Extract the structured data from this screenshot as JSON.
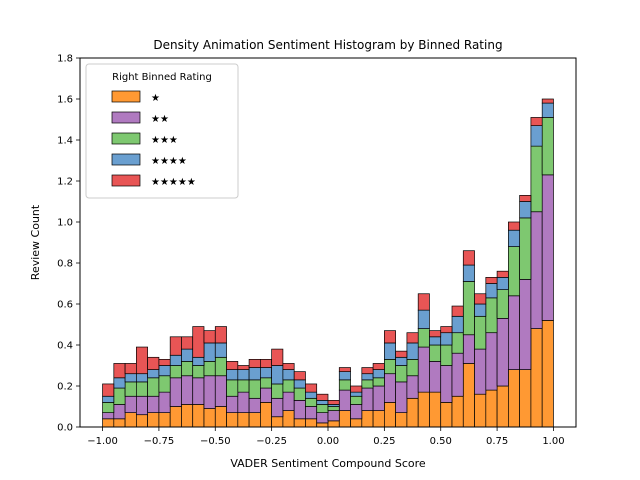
{
  "chart_data": {
    "type": "bar",
    "stacked": true,
    "title": "Density Animation Sentiment Histogram by Binned Rating",
    "xlabel": "VADER Sentiment Compound Score",
    "ylabel": "Review Count",
    "xlim": [
      -1.1,
      1.1
    ],
    "ylim": [
      0,
      1.8
    ],
    "xticks": [
      -1.0,
      -0.75,
      -0.5,
      -0.25,
      0.0,
      0.25,
      0.5,
      0.75,
      1.0
    ],
    "xtick_labels": [
      "−1.00",
      "−0.75",
      "−0.50",
      "−0.25",
      "0.00",
      "0.25",
      "0.50",
      "0.75",
      "1.00"
    ],
    "yticks": [
      0.0,
      0.2,
      0.4,
      0.6,
      0.8,
      1.0,
      1.2,
      1.4,
      1.6,
      1.8
    ],
    "ytick_labels": [
      "0.0",
      "0.2",
      "0.4",
      "0.6",
      "0.8",
      "1.0",
      "1.2",
      "1.4",
      "1.6",
      "1.8"
    ],
    "grid": false,
    "legend": {
      "title": "Right Binned Rating",
      "placement": "upper-left"
    },
    "bin_width": 0.05,
    "bin_left_edges": [
      -1.0,
      -0.95,
      -0.9,
      -0.85,
      -0.8,
      -0.75,
      -0.7,
      -0.65,
      -0.6,
      -0.55,
      -0.5,
      -0.45,
      -0.4,
      -0.35,
      -0.3,
      -0.25,
      -0.2,
      -0.15,
      -0.1,
      -0.05,
      0.0,
      0.05,
      0.1,
      0.15,
      0.2,
      0.25,
      0.3,
      0.35,
      0.4,
      0.45,
      0.5,
      0.55,
      0.6,
      0.65,
      0.7,
      0.75,
      0.8,
      0.85,
      0.9,
      0.95
    ],
    "series": [
      {
        "name": "★",
        "color": "#ff9933",
        "values": [
          0.04,
          0.04,
          0.07,
          0.06,
          0.07,
          0.07,
          0.1,
          0.11,
          0.11,
          0.09,
          0.1,
          0.07,
          0.07,
          0.07,
          0.12,
          0.05,
          0.08,
          0.04,
          0.04,
          0.02,
          0.03,
          0.08,
          0.04,
          0.08,
          0.08,
          0.12,
          0.07,
          0.14,
          0.17,
          0.17,
          0.12,
          0.15,
          0.31,
          0.16,
          0.18,
          0.2,
          0.28,
          0.28,
          0.48,
          0.52
        ]
      },
      {
        "name": "★★",
        "color": "#b07ac0",
        "values": [
          0.03,
          0.07,
          0.08,
          0.09,
          0.08,
          0.1,
          0.14,
          0.14,
          0.13,
          0.16,
          0.15,
          0.08,
          0.1,
          0.07,
          0.07,
          0.09,
          0.09,
          0.09,
          0.06,
          0.05,
          0.05,
          0.1,
          0.07,
          0.11,
          0.12,
          0.14,
          0.15,
          0.11,
          0.22,
          0.15,
          0.18,
          0.21,
          0.14,
          0.22,
          0.28,
          0.33,
          0.36,
          0.44,
          0.57,
          0.71
        ]
      },
      {
        "name": "★★★",
        "color": "#7ec870",
        "values": [
          0.05,
          0.08,
          0.07,
          0.07,
          0.09,
          0.08,
          0.06,
          0.07,
          0.06,
          0.07,
          0.09,
          0.08,
          0.06,
          0.09,
          0.05,
          0.07,
          0.06,
          0.06,
          0.04,
          0.04,
          0.02,
          0.05,
          0.04,
          0.04,
          0.04,
          0.07,
          0.08,
          0.08,
          0.09,
          0.08,
          0.1,
          0.1,
          0.26,
          0.16,
          0.17,
          0.14,
          0.24,
          0.3,
          0.32,
          0.28
        ]
      },
      {
        "name": "★★★★",
        "color": "#6a9fd0",
        "values": [
          0.03,
          0.05,
          0.04,
          0.04,
          0.04,
          0.05,
          0.05,
          0.06,
          0.04,
          0.09,
          0.07,
          0.05,
          0.05,
          0.06,
          0.05,
          0.09,
          0.05,
          0.04,
          0.03,
          0.02,
          0.01,
          0.04,
          0.02,
          0.03,
          0.04,
          0.08,
          0.04,
          0.08,
          0.09,
          0.04,
          0.06,
          0.08,
          0.08,
          0.06,
          0.07,
          0.06,
          0.08,
          0.08,
          0.1,
          0.07
        ]
      },
      {
        "name": "★★★★★",
        "color": "#e85555",
        "values": [
          0.06,
          0.07,
          0.05,
          0.13,
          0.06,
          0.03,
          0.09,
          0.06,
          0.15,
          0.06,
          0.08,
          0.04,
          0.02,
          0.04,
          0.04,
          0.08,
          0.03,
          0.04,
          0.04,
          0.03,
          0.02,
          0.02,
          0.03,
          0.03,
          0.03,
          0.06,
          0.03,
          0.05,
          0.08,
          0.03,
          0.03,
          0.05,
          0.07,
          0.05,
          0.03,
          0.03,
          0.04,
          0.03,
          0.04,
          0.02
        ]
      }
    ]
  }
}
